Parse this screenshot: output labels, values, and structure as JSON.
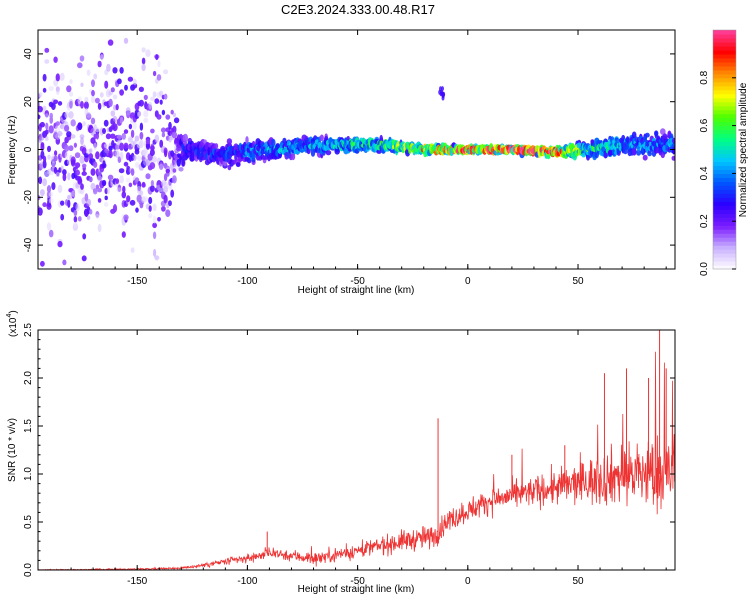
{
  "figure": {
    "title": "C2E3.2024.333.00.48.R17"
  },
  "chart_data": [
    {
      "type": "heatmap",
      "xlabel": "Height of straight line (km)",
      "ylabel": "Frequency (Hz)",
      "xlim": [
        -195,
        94
      ],
      "ylim": [
        -50,
        50
      ],
      "xticks": [
        -150,
        -100,
        -50,
        0,
        50
      ],
      "yticks": [
        -40,
        -20,
        0,
        20,
        40
      ],
      "grid": false,
      "colorbar": {
        "label": "Normalized spectral amplitude",
        "range": [
          0.0,
          1.0
        ],
        "ticks": [
          0.0,
          0.2,
          0.4,
          0.6,
          0.8
        ],
        "colors": [
          "#ffffff",
          "#c9b0ff",
          "#7a1cff",
          "#2b00ff",
          "#0057ff",
          "#00c8ff",
          "#00ff80",
          "#4cff00",
          "#ffff00",
          "#ff8c00",
          "#ff0000",
          "#ff40a0"
        ]
      },
      "band": {
        "x": [
          -195,
          -140,
          -128,
          -110,
          -90,
          -60,
          -40,
          -20,
          0,
          20,
          40,
          55,
          70,
          94
        ],
        "center_freq": [
          0,
          0,
          0,
          -2,
          0,
          2,
          2,
          0,
          0,
          0,
          -1,
          0,
          2,
          2
        ],
        "half_width": [
          45,
          45,
          8,
          8,
          6,
          5,
          4,
          3,
          2,
          2,
          3,
          5,
          8,
          8
        ],
        "peak_amplitude": [
          0.2,
          0.2,
          0.3,
          0.35,
          0.45,
          0.5,
          0.6,
          0.8,
          1.0,
          1.0,
          0.9,
          0.6,
          0.45,
          0.4
        ]
      },
      "feature": {
        "x": -12,
        "freq": 24,
        "amplitude": 0.25
      }
    },
    {
      "type": "line",
      "xlabel": "Height of straight line (km)",
      "ylabel": "SNR (10 * v/v)",
      "yscale_note": "(x10",
      "yscale_exp": "4",
      "xlim": [
        -195,
        94
      ],
      "ylim": [
        0.0,
        2.5
      ],
      "xticks": [
        -150,
        -100,
        -50,
        0,
        50
      ],
      "yticks": [
        "0.0",
        "0.5",
        "1.0",
        "1.5",
        "2.0",
        "2.5"
      ],
      "grid": false,
      "color": "#ee3333",
      "trend": {
        "x": [
          -195,
          -150,
          -130,
          -120,
          -100,
          -90,
          -70,
          -50,
          -30,
          -15,
          -10,
          0,
          10,
          30,
          50,
          70,
          94
        ],
        "y": [
          0.0,
          0.01,
          0.02,
          0.05,
          0.12,
          0.18,
          0.12,
          0.2,
          0.3,
          0.35,
          0.5,
          0.62,
          0.72,
          0.82,
          0.9,
          1.0,
          1.0
        ]
      },
      "noise_spread": {
        "x": [
          -195,
          -130,
          -100,
          -50,
          -20,
          0,
          30,
          50,
          70,
          94
        ],
        "y": [
          0.005,
          0.01,
          0.05,
          0.08,
          0.12,
          0.12,
          0.15,
          0.22,
          0.32,
          0.45
        ]
      },
      "spikes": [
        {
          "x": -13.5,
          "y": 1.58
        },
        {
          "x": 87,
          "y": 2.5
        },
        {
          "x": 82,
          "y": 2.0
        },
        {
          "x": 72,
          "y": 2.1
        },
        {
          "x": 90,
          "y": 2.1
        },
        {
          "x": 62,
          "y": 2.05
        },
        {
          "x": -91,
          "y": 0.4
        },
        {
          "x": 44,
          "y": 1.3
        },
        {
          "x": 20,
          "y": 1.2
        }
      ]
    }
  ]
}
